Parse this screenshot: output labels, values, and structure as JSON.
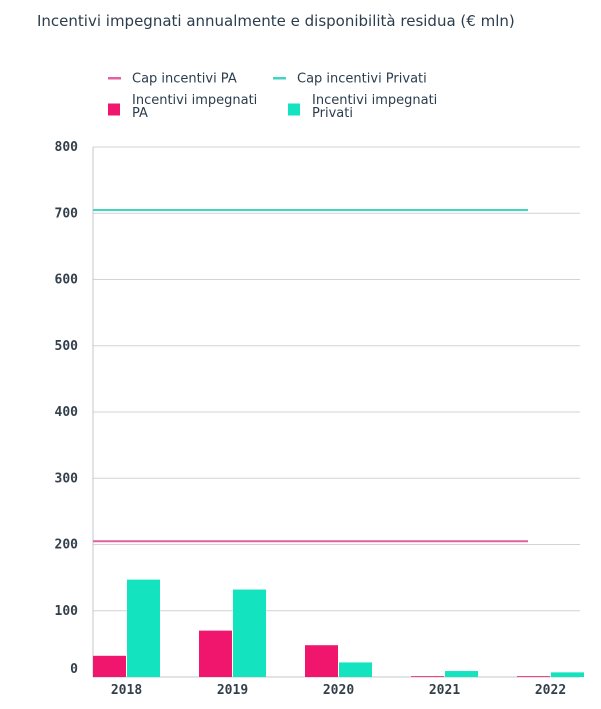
{
  "chart_data": {
    "type": "bar",
    "title": "Incentivi impegnati annualmente e disponibilità residua (€ mln)",
    "categories": [
      "2018",
      "2019",
      "2020",
      "2021",
      "2022"
    ],
    "series": [
      {
        "name": "Incentivi impegnati PA",
        "kind": "bar",
        "color": "#f0166d",
        "values": [
          32,
          70,
          48,
          1,
          1
        ]
      },
      {
        "name": "Incentivi impegnati Privati",
        "kind": "bar",
        "color": "#13e3bf",
        "values": [
          147,
          132,
          22,
          9,
          7
        ]
      },
      {
        "name": "Cap incentivi PA",
        "kind": "line",
        "color": "#e35f9d",
        "values": [
          205,
          205,
          205,
          205,
          205
        ]
      },
      {
        "name": "Cap incentivi Privati",
        "kind": "line",
        "color": "#3fd6c0",
        "values": [
          705,
          705,
          705,
          705,
          705
        ]
      }
    ],
    "ylim": [
      0,
      800
    ],
    "yticks": [
      "0",
      "100",
      "200",
      "300",
      "400",
      "500",
      "600",
      "700",
      "800"
    ],
    "legend": {
      "position": "top-left",
      "entries": [
        {
          "label": "Cap incentivi PA",
          "lines": [
            "Cap incentivi PA"
          ],
          "symbol": "line",
          "color": "#e35f9d"
        },
        {
          "label": "Cap incentivi Privati",
          "lines": [
            "Cap incentivi Privati"
          ],
          "symbol": "line",
          "color": "#3fd6c0"
        },
        {
          "label": "Incentivi impegnati PA",
          "lines": [
            "Incentivi impegnati",
            "PA"
          ],
          "symbol": "square",
          "color": "#f0166d"
        },
        {
          "label": "Incentivi impegnati Privati",
          "lines": [
            "Incentivi impegnati",
            "Privati"
          ],
          "symbol": "square",
          "color": "#13e3bf"
        }
      ]
    },
    "grid": true
  }
}
